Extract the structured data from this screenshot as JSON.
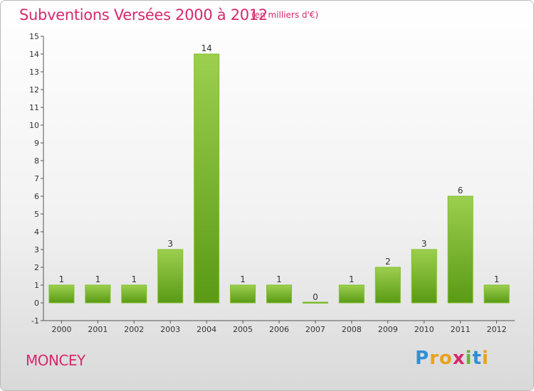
{
  "header": {
    "title": "Subventions Versées 2000 à 2012",
    "unit": "(en milliers d'€)"
  },
  "footer": {
    "commune": "MONCEY",
    "logo_text": "Proxiti"
  },
  "colors": {
    "title": "#d6286e",
    "bar_top": "#9ccf4e",
    "bar_bottom": "#5a9a14"
  },
  "chart_data": {
    "type": "bar",
    "title": "Subventions Versées 2000 à 2012",
    "xlabel": "",
    "ylabel": "",
    "categories": [
      "2000",
      "2001",
      "2002",
      "2003",
      "2004",
      "2005",
      "2006",
      "2007",
      "2008",
      "2009",
      "2010",
      "2011",
      "2012"
    ],
    "values": [
      1,
      1,
      1,
      3,
      14,
      1,
      1,
      0,
      1,
      2,
      3,
      6,
      1
    ],
    "ylim": [
      -1,
      15
    ],
    "yticks": [
      "-1",
      "0",
      "1",
      "2",
      "3",
      "4",
      "5",
      "6",
      "7",
      "8",
      "9",
      "10",
      "11",
      "12",
      "13",
      "14",
      "15"
    ],
    "grid": false
  }
}
